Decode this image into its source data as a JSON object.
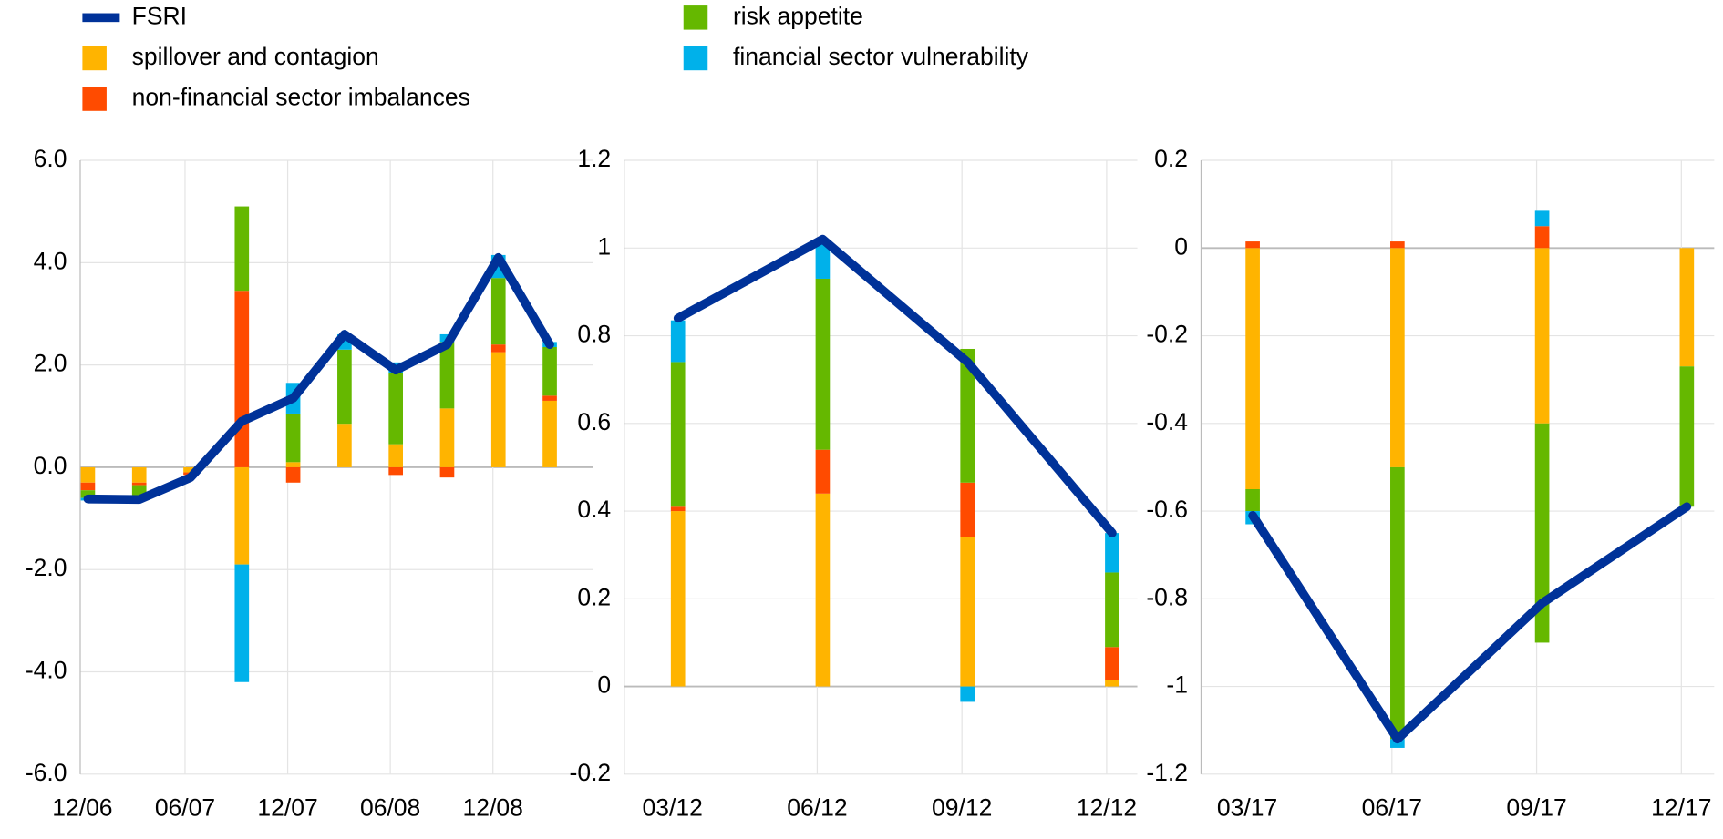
{
  "chart_data": [
    {
      "type": "bar",
      "stacked": true,
      "categories": [
        "12/06",
        null,
        "06/07",
        null,
        "12/07",
        null,
        "06/08",
        null,
        "12/08",
        null
      ],
      "series": [
        {
          "name": "FSRI",
          "type": "line",
          "color": "#003299",
          "values": [
            -0.62,
            -0.63,
            -0.2,
            0.9,
            1.35,
            2.6,
            1.9,
            2.4,
            4.1,
            2.4
          ]
        },
        {
          "name": "spillover and contagion",
          "color": "#ffb400",
          "values": [
            -0.3,
            -0.3,
            -0.1,
            -1.9,
            0.1,
            0.85,
            0.45,
            1.15,
            2.25,
            1.3
          ]
        },
        {
          "name": "non-financial sector imbalances",
          "color": "#ff4b00",
          "values": [
            -0.15,
            -0.05,
            -0.05,
            3.45,
            -0.3,
            0,
            -0.15,
            -0.2,
            0.15,
            0.1
          ]
        },
        {
          "name": "risk appetite",
          "color": "#65b800",
          "values": [
            -0.15,
            -0.25,
            0,
            1.65,
            0.95,
            1.45,
            1.4,
            1.3,
            1.3,
            0.95
          ]
        },
        {
          "name": "financial sector vulnerability",
          "color": "#00b1ea",
          "values": [
            -0.05,
            0,
            0,
            -2.3,
            0.6,
            0.3,
            0.2,
            0.15,
            0.45,
            0.1
          ]
        }
      ],
      "ylim": [
        -6,
        6
      ],
      "yticks": [
        {
          "value": -6,
          "label": "-6.0"
        },
        {
          "value": -4,
          "label": "-4.0"
        },
        {
          "value": -2,
          "label": "-2.0"
        },
        {
          "value": 0,
          "label": "0.0"
        },
        {
          "value": 2,
          "label": "2.0"
        },
        {
          "value": 4,
          "label": "4.0"
        },
        {
          "value": 6,
          "label": "6.0"
        }
      ],
      "grid": true
    },
    {
      "type": "bar",
      "stacked": true,
      "categories": [
        "03/12",
        "06/12",
        "09/12",
        "12/12"
      ],
      "series": [
        {
          "type": "line",
          "color": "#003299",
          "values": [
            0.84,
            1.02,
            0.74,
            0.35
          ]
        },
        {
          "color": "#ffb400",
          "values": [
            0.4,
            0.44,
            0.34,
            0.015
          ]
        },
        {
          "color": "#ff4b00",
          "values": [
            0.01,
            0.1,
            0.125,
            0.075
          ]
        },
        {
          "color": "#65b800",
          "values": [
            0.33,
            0.39,
            0.305,
            0.17
          ]
        },
        {
          "color": "#00b1ea",
          "values": [
            0.095,
            0.08,
            -0.035,
            0.09
          ]
        }
      ],
      "ylim": [
        -0.2,
        1.2
      ],
      "yticks": [
        -0.2,
        0,
        0.2,
        0.4,
        0.6,
        0.8,
        1,
        1.2
      ],
      "grid": true
    },
    {
      "type": "bar",
      "stacked": true,
      "categories": [
        "03/17",
        "06/17",
        "09/17",
        "12/17"
      ],
      "series": [
        {
          "type": "line",
          "color": "#003299",
          "values": [
            -0.61,
            -1.12,
            -0.81,
            -0.59
          ]
        },
        {
          "color": "#ffb400",
          "values": [
            -0.55,
            -0.5,
            -0.4,
            -0.27
          ]
        },
        {
          "color": "#ff4b00",
          "values": [
            0.015,
            0.015,
            0.05,
            0
          ]
        },
        {
          "color": "#65b800",
          "values": [
            -0.05,
            -0.62,
            -0.5,
            -0.32
          ]
        },
        {
          "color": "#00b1ea",
          "values": [
            -0.03,
            -0.02,
            0.035,
            0
          ]
        }
      ],
      "ylim": [
        -1.2,
        0.2
      ],
      "yticks": [
        -1.2,
        -1,
        -0.8,
        -0.6,
        -0.4,
        -0.2,
        0,
        0.2
      ],
      "grid": true
    }
  ]
}
